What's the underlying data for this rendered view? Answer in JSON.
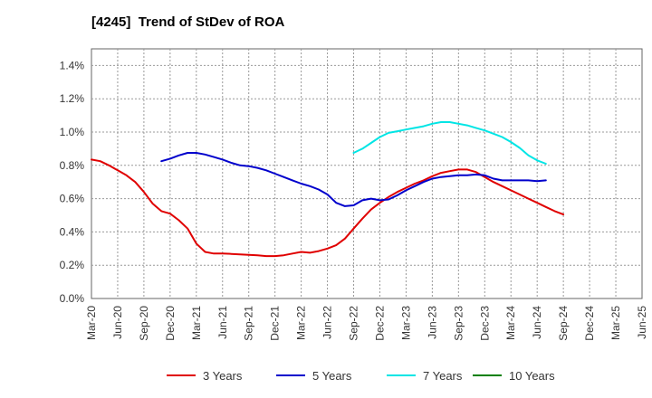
{
  "chart_data": {
    "type": "line",
    "title": "[4245]  Trend of StDev of ROA",
    "xlabel": "",
    "ylabel": "",
    "x_ticks": [
      "Mar-20",
      "Jun-20",
      "Sep-20",
      "Dec-20",
      "Mar-21",
      "Jun-21",
      "Sep-21",
      "Dec-21",
      "Mar-22",
      "Jun-22",
      "Sep-22",
      "Dec-22",
      "Mar-23",
      "Jun-23",
      "Sep-23",
      "Dec-23",
      "Mar-24",
      "Jun-24",
      "Sep-24",
      "Dec-24",
      "Mar-25",
      "Jun-25"
    ],
    "y_ticks": [
      "0.0%",
      "0.2%",
      "0.4%",
      "0.6%",
      "0.8%",
      "1.0%",
      "1.2%",
      "1.4%"
    ],
    "ylim": [
      0,
      1.5
    ],
    "y_unit": "%",
    "grid": true,
    "legend_position": "bottom",
    "series": [
      {
        "name": "3 Years",
        "color": "#e00000",
        "start_index": 0,
        "values": [
          0.835,
          0.825,
          0.8,
          0.77,
          0.74,
          0.7,
          0.64,
          0.57,
          0.525,
          0.51,
          0.47,
          0.42,
          0.33,
          0.28,
          0.27,
          0.27,
          0.268,
          0.265,
          0.262,
          0.26,
          0.255,
          0.255,
          0.26,
          0.27,
          0.28,
          0.275,
          0.285,
          0.3,
          0.32,
          0.36,
          0.42,
          0.48,
          0.535,
          0.575,
          0.61,
          0.64,
          0.665,
          0.69,
          0.71,
          0.735,
          0.755,
          0.765,
          0.775,
          0.775,
          0.76,
          0.73,
          0.7,
          0.675,
          0.65,
          0.625,
          0.6,
          0.575,
          0.55,
          0.525,
          0.505
        ]
      },
      {
        "name": "5 Years",
        "color": "#0000cc",
        "start_index": 8,
        "values": [
          0.825,
          0.84,
          0.86,
          0.875,
          0.875,
          0.865,
          0.85,
          0.835,
          0.815,
          0.8,
          0.795,
          0.785,
          0.77,
          0.75,
          0.73,
          0.71,
          0.69,
          0.675,
          0.655,
          0.625,
          0.575,
          0.555,
          0.56,
          0.59,
          0.6,
          0.59,
          0.595,
          0.62,
          0.65,
          0.675,
          0.7,
          0.72,
          0.73,
          0.735,
          0.74,
          0.74,
          0.745,
          0.74,
          0.72,
          0.71,
          0.71,
          0.71,
          0.71,
          0.705,
          0.71
        ]
      },
      {
        "name": "7 Years",
        "color": "#00e5e5",
        "start_index": 30,
        "values": [
          0.875,
          0.9,
          0.935,
          0.97,
          0.995,
          1.005,
          1.015,
          1.025,
          1.035,
          1.05,
          1.06,
          1.06,
          1.05,
          1.04,
          1.025,
          1.01,
          0.99,
          0.97,
          0.94,
          0.905,
          0.86,
          0.83,
          0.81
        ]
      },
      {
        "name": "10 Years",
        "color": "#008000",
        "start_index": 0,
        "values": []
      }
    ]
  }
}
